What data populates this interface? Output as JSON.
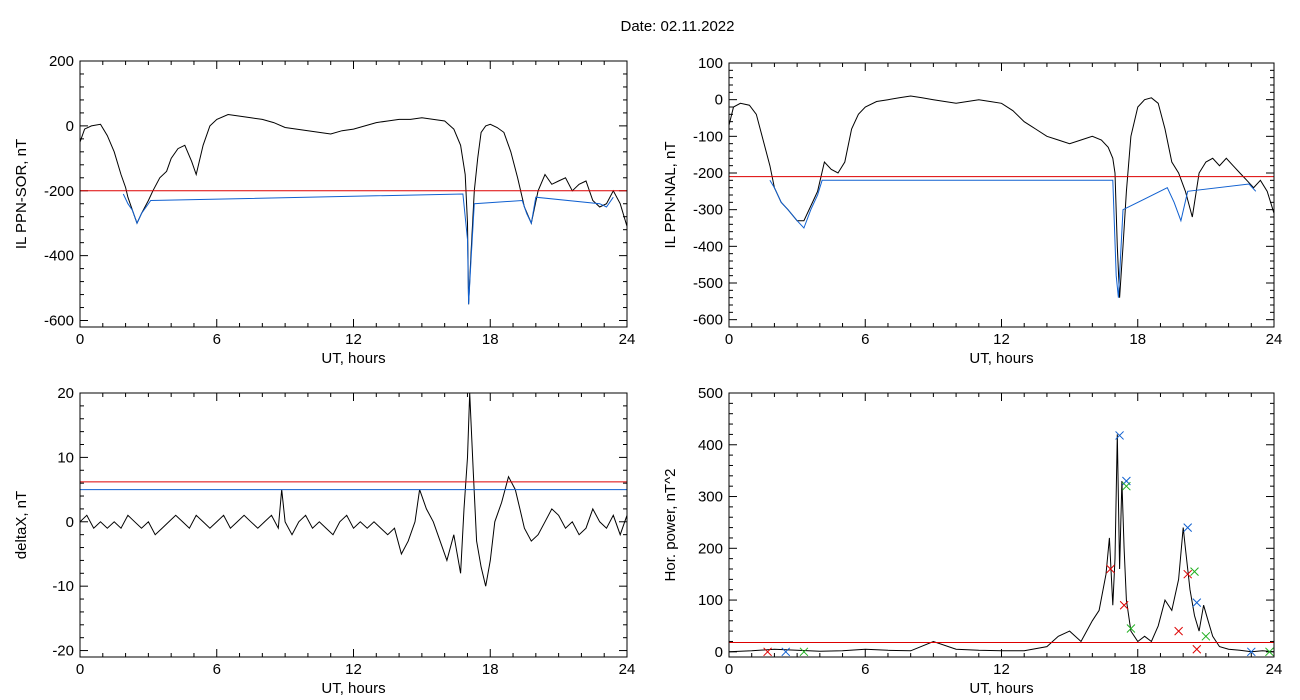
{
  "header": {
    "date_title": "Date:  02.11.2022"
  },
  "colors": {
    "black": "#000000",
    "red": "#dd0000",
    "blue": "#1060d0",
    "green": "#20b020"
  },
  "chart_data": [
    {
      "type": "line",
      "ylabel": "IL PPN-SOR, nT",
      "xlabel": "UT, hours",
      "xlim": [
        0,
        24
      ],
      "ylim": [
        -620,
        200
      ],
      "xticks": [
        0,
        6,
        12,
        18,
        24
      ],
      "yticks": [
        -600,
        -400,
        -200,
        0,
        200
      ],
      "threshold": {
        "value": -200,
        "color": "red"
      },
      "series": [
        {
          "color": "black",
          "x": [
            0,
            0.2,
            0.5,
            0.9,
            1.2,
            1.5,
            1.8,
            2.0,
            2.1,
            2.3,
            2.5,
            2.7,
            3.0,
            3.2,
            3.5,
            3.8,
            4.0,
            4.3,
            4.6,
            4.9,
            5.1,
            5.4,
            5.7,
            6.0,
            6.5,
            7.0,
            7.5,
            8.0,
            8.5,
            9.0,
            9.5,
            10.0,
            10.5,
            11.0,
            11.5,
            12.0,
            12.5,
            13.0,
            13.5,
            14.0,
            14.5,
            15.0,
            15.5,
            16.0,
            16.4,
            16.7,
            16.9,
            17.0,
            17.05,
            17.15,
            17.3,
            17.45,
            17.6,
            17.8,
            18.0,
            18.3,
            18.6,
            18.9,
            19.2,
            19.5,
            19.8,
            20.1,
            20.4,
            20.7,
            21.0,
            21.3,
            21.6,
            21.9,
            22.2,
            22.5,
            22.8,
            23.1,
            23.4,
            23.7,
            24.0
          ],
          "y": [
            -50,
            -10,
            0,
            5,
            -30,
            -80,
            -150,
            -190,
            -220,
            -260,
            -300,
            -270,
            -230,
            -200,
            -160,
            -140,
            -100,
            -70,
            -60,
            -110,
            -150,
            -60,
            0,
            20,
            35,
            30,
            25,
            20,
            10,
            -5,
            -10,
            -15,
            -20,
            -25,
            -15,
            -10,
            0,
            10,
            15,
            20,
            20,
            25,
            20,
            15,
            -10,
            -60,
            -150,
            -300,
            -550,
            -400,
            -200,
            -100,
            -20,
            0,
            5,
            -5,
            -20,
            -80,
            -160,
            -250,
            -300,
            -200,
            -150,
            -180,
            -170,
            -160,
            -200,
            -180,
            -170,
            -230,
            -250,
            -240,
            -200,
            -240,
            -310
          ]
        },
        {
          "color": "blue",
          "x": [
            1.9,
            2.1,
            2.3,
            2.5,
            2.7,
            2.9,
            3.1,
            16.8,
            17.0,
            17.05,
            17.15,
            17.3,
            19.4,
            19.6,
            19.8,
            20.0,
            22.8,
            23.1,
            23.4
          ],
          "y": [
            -210,
            -240,
            -260,
            -300,
            -270,
            -250,
            -230,
            -210,
            -350,
            -550,
            -420,
            -240,
            -230,
            -270,
            -300,
            -220,
            -240,
            -250,
            -220
          ]
        }
      ]
    },
    {
      "type": "line",
      "ylabel": "IL PPN-NAL, nT",
      "xlabel": "UT, hours",
      "xlim": [
        0,
        24
      ],
      "ylim": [
        -620,
        100
      ],
      "xticks": [
        0,
        6,
        12,
        18,
        24
      ],
      "yticks": [
        -600,
        -500,
        -400,
        -300,
        -200,
        -100,
        0,
        100
      ],
      "threshold": {
        "value": -210,
        "color": "red"
      },
      "series": [
        {
          "color": "black",
          "x": [
            0,
            0.2,
            0.5,
            0.9,
            1.2,
            1.5,
            1.8,
            2.0,
            2.3,
            2.6,
            3.0,
            3.3,
            3.6,
            3.9,
            4.2,
            4.5,
            4.8,
            5.1,
            5.4,
            5.7,
            6.0,
            6.5,
            7.0,
            7.5,
            8.0,
            8.5,
            9.0,
            9.5,
            10.0,
            10.5,
            11.0,
            11.5,
            12.0,
            12.5,
            13.0,
            13.5,
            14.0,
            14.5,
            15.0,
            15.5,
            16.0,
            16.4,
            16.7,
            16.9,
            17.0,
            17.1,
            17.2,
            17.35,
            17.5,
            17.7,
            18.0,
            18.3,
            18.6,
            18.9,
            19.2,
            19.5,
            19.8,
            20.1,
            20.4,
            20.7,
            21.0,
            21.3,
            21.6,
            21.9,
            22.2,
            22.5,
            22.8,
            23.1,
            23.4,
            23.7,
            24.0
          ],
          "y": [
            -70,
            -20,
            -10,
            -15,
            -40,
            -110,
            -180,
            -240,
            -280,
            -300,
            -330,
            -330,
            -290,
            -250,
            -170,
            -190,
            -200,
            -170,
            -80,
            -40,
            -20,
            -5,
            0,
            5,
            10,
            5,
            0,
            -5,
            -10,
            -5,
            0,
            -5,
            -10,
            -30,
            -60,
            -80,
            -100,
            -110,
            -120,
            -110,
            -100,
            -110,
            -130,
            -160,
            -200,
            -400,
            -540,
            -400,
            -250,
            -100,
            -20,
            0,
            5,
            -10,
            -80,
            -170,
            -200,
            -250,
            -320,
            -200,
            -170,
            -160,
            -180,
            -160,
            -180,
            -200,
            -220,
            -240,
            -220,
            -250,
            -310
          ]
        },
        {
          "color": "blue",
          "x": [
            1.8,
            2.0,
            2.3,
            2.6,
            3.0,
            3.3,
            3.6,
            3.9,
            4.1,
            16.9,
            17.05,
            17.15,
            17.25,
            17.35,
            19.3,
            19.6,
            19.9,
            20.2,
            22.9,
            23.2
          ],
          "y": [
            -220,
            -240,
            -280,
            -300,
            -330,
            -350,
            -300,
            -260,
            -220,
            -220,
            -480,
            -540,
            -420,
            -300,
            -240,
            -280,
            -330,
            -250,
            -230,
            -250
          ]
        }
      ]
    },
    {
      "type": "line",
      "ylabel": "deltaX, nT",
      "xlabel": "UT, hours",
      "xlim": [
        0,
        24
      ],
      "ylim": [
        -21,
        20
      ],
      "xticks": [
        0,
        6,
        12,
        18,
        24
      ],
      "yticks": [
        -20,
        -10,
        0,
        10,
        20
      ],
      "thresholds": [
        {
          "value": 6.2,
          "color": "red"
        },
        {
          "value": 5.0,
          "color": "blue"
        }
      ],
      "series": [
        {
          "color": "black",
          "x": [
            0,
            0.3,
            0.6,
            0.9,
            1.2,
            1.5,
            1.8,
            2.1,
            2.4,
            2.7,
            3.0,
            3.3,
            3.6,
            3.9,
            4.2,
            4.5,
            4.8,
            5.1,
            5.4,
            5.7,
            6.0,
            6.3,
            6.6,
            6.9,
            7.2,
            7.5,
            7.8,
            8.1,
            8.4,
            8.7,
            8.85,
            9.0,
            9.3,
            9.6,
            9.9,
            10.2,
            10.5,
            10.8,
            11.1,
            11.4,
            11.7,
            12.0,
            12.3,
            12.6,
            12.9,
            13.2,
            13.5,
            13.8,
            14.1,
            14.4,
            14.7,
            14.9,
            15.2,
            15.5,
            15.8,
            16.1,
            16.4,
            16.7,
            16.85,
            17.0,
            17.1,
            17.25,
            17.4,
            17.6,
            17.8,
            18.0,
            18.2,
            18.5,
            18.8,
            19.1,
            19.3,
            19.5,
            19.8,
            20.1,
            20.4,
            20.7,
            21.0,
            21.3,
            21.6,
            21.9,
            22.2,
            22.5,
            22.8,
            23.1,
            23.4,
            23.7,
            24.0
          ],
          "y": [
            0,
            1,
            -1,
            0,
            -1,
            0,
            -1,
            1,
            0,
            -1,
            0,
            -2,
            -1,
            0,
            1,
            0,
            -1,
            1,
            0,
            -1,
            0,
            1,
            -1,
            0,
            1,
            0,
            -1,
            0,
            1,
            -1,
            5,
            0,
            -2,
            0,
            1,
            -1,
            0,
            -1,
            -2,
            0,
            1,
            -1,
            0,
            -1,
            0,
            -1,
            -2,
            -1,
            -5,
            -3,
            0,
            5,
            2,
            0,
            -3,
            -6,
            -2,
            -8,
            2,
            10,
            20,
            8,
            -3,
            -7,
            -10,
            -6,
            0,
            3,
            7,
            5,
            2,
            -1,
            -3,
            -2,
            0,
            2,
            1,
            -1,
            0,
            -2,
            -1,
            2,
            0,
            -1,
            1,
            -2,
            1
          ]
        }
      ]
    },
    {
      "type": "line",
      "ylabel": "Hor. power, nT^2",
      "xlabel": "UT, hours",
      "xlim": [
        0,
        24
      ],
      "ylim": [
        -10,
        500
      ],
      "xticks": [
        0,
        6,
        12,
        18,
        24
      ],
      "yticks": [
        0,
        100,
        200,
        300,
        400,
        500
      ],
      "threshold": {
        "value": 18,
        "color": "red"
      },
      "series": [
        {
          "color": "black",
          "x": [
            0,
            1,
            2,
            3,
            4,
            5,
            6,
            7,
            8,
            9,
            10,
            11,
            12,
            13,
            14,
            14.5,
            15,
            15.5,
            16,
            16.3,
            16.6,
            16.75,
            16.9,
            17.0,
            17.1,
            17.2,
            17.3,
            17.4,
            17.5,
            17.7,
            18.0,
            18.3,
            18.6,
            18.9,
            19.2,
            19.5,
            19.8,
            20.0,
            20.1,
            20.3,
            20.5,
            20.7,
            20.9,
            21.1,
            21.3,
            21.6,
            22.0,
            22.5,
            23,
            23.5,
            24
          ],
          "y": [
            0,
            2,
            5,
            3,
            1,
            2,
            5,
            3,
            2,
            20,
            5,
            3,
            2,
            2,
            10,
            30,
            40,
            20,
            60,
            80,
            150,
            220,
            90,
            180,
            420,
            160,
            330,
            200,
            100,
            40,
            20,
            30,
            20,
            50,
            100,
            80,
            140,
            240,
            200,
            120,
            70,
            40,
            90,
            60,
            30,
            10,
            5,
            3,
            0,
            2,
            0
          ]
        }
      ],
      "markers": [
        {
          "color": "blue",
          "x": [
            2.5,
            17.2,
            17.5,
            20.2,
            20.6,
            23.0
          ],
          "y": [
            0,
            418,
            330,
            240,
            95,
            0
          ]
        },
        {
          "color": "red",
          "x": [
            1.7,
            16.8,
            17.4,
            19.8,
            20.2,
            20.6
          ],
          "y": [
            0,
            160,
            90,
            40,
            150,
            5
          ]
        },
        {
          "color": "green",
          "x": [
            3.3,
            17.5,
            17.7,
            20.5,
            21.0,
            23.8
          ],
          "y": [
            0,
            320,
            45,
            155,
            30,
            0
          ]
        }
      ]
    }
  ]
}
